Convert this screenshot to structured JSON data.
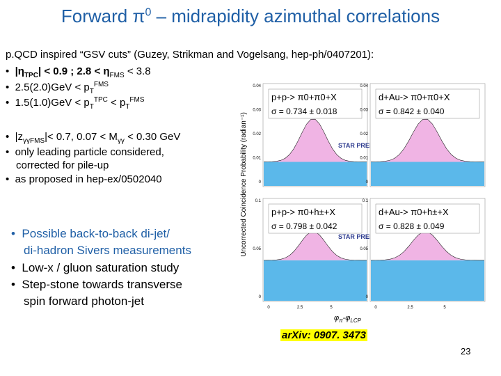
{
  "title": {
    "pre": "Forward ",
    "pi": "π",
    "sup": "0",
    "post": " – midrapidity azimuthal correlations"
  },
  "cuts_header": "p.QCD inspired “GSV cuts” (Guzey, Strikman and Vogelsang, hep-ph/0407201):",
  "cuts": [
    [
      "|η",
      "TPC",
      "| < 0.9 ; 2.8 < η",
      "FMS",
      " < 3.8"
    ],
    [
      "2.5(2.0)GeV < p",
      "T",
      "FMS"
    ],
    [
      "1.5(1.0)GeV < p",
      "T",
      "TPC",
      " < p",
      "T",
      "FMS"
    ]
  ],
  "notes": [
    [
      "|z",
      "γγFMS",
      "|< 0.7,  0.07 < M",
      "γγ",
      " < 0.30 GeV"
    ],
    [
      "only leading particle considered,",
      "corrected for pile-up"
    ],
    [
      "as proposed in hep-ex/0502040"
    ]
  ],
  "goals": [
    [
      "Possible back-to-back di-jet/",
      "di-hadron Sivers measurements"
    ],
    [
      "Low-x / gluon saturation study"
    ],
    [
      "Step-stone towards transverse",
      "spin forward photon-jet"
    ]
  ],
  "panels": [
    {
      "label": "p+p-> π0+π0+X",
      "sigma": "σ = 0.734 ± 0.018"
    },
    {
      "label": "d+Au-> π0+π0+X",
      "sigma": "σ = 0.842 ± 0.040"
    },
    {
      "label": "p+p-> π0+h±+X",
      "sigma": "σ = 0.798 ± 0.042"
    },
    {
      "label": "d+Au-> π0+h±+X",
      "sigma": "σ = 0.828 ± 0.049"
    }
  ],
  "preliminary": "STAR PRELIMINARY",
  "top_yticks": [
    "0.04",
    "0.03",
    "0.02",
    "0.01",
    "0"
  ],
  "bottom_yticks": [
    "0.1",
    "0.05",
    "0"
  ],
  "xticks": [
    "0",
    "2.5",
    "5"
  ],
  "y_axis_label": "Uncorrected Coincidence Probability (radian⁻¹)",
  "x_axis_label": [
    "φ",
    "π",
    "-φ",
    "LCP"
  ],
  "reference": "arXiv: 0907. 3473",
  "page_number": "23"
}
